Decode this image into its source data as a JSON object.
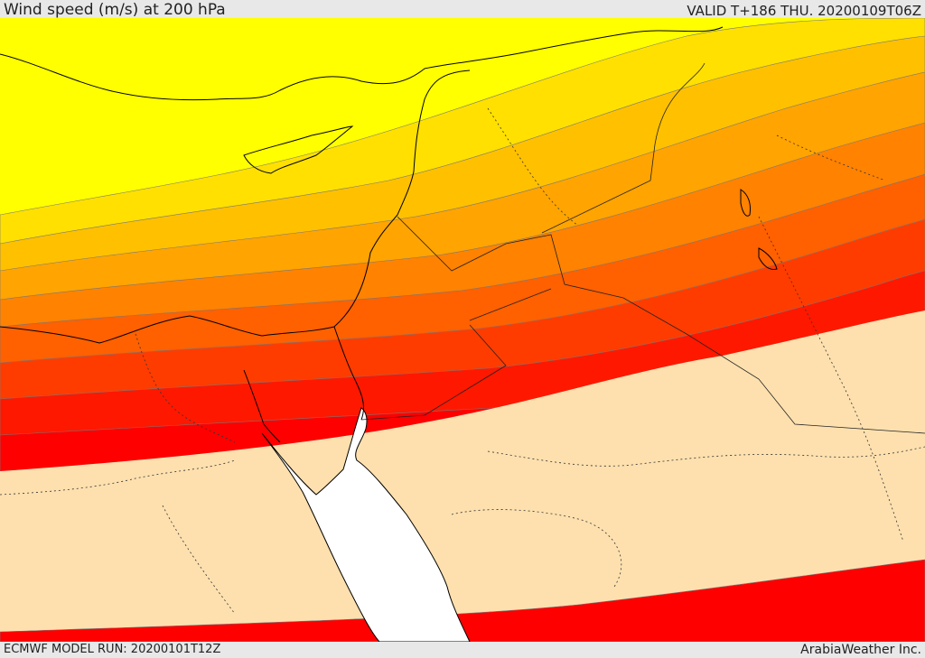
{
  "header": {
    "title": "Wind speed (m/s) at 200 hPa",
    "valid": "VALID T+186 THU. 20200109T06Z"
  },
  "footer": {
    "model_run": "ECMWF MODEL RUN: 20200101T12Z",
    "credit": "ArabiaWeather Inc."
  },
  "palette": {
    "sea_land_low": "#fde0ae",
    "band_1": "#ffff00",
    "band_2": "#ffe000",
    "band_3": "#ffc000",
    "band_4": "#ffa400",
    "band_5": "#ff8200",
    "band_6": "#ff6000",
    "band_7": "#ff3c00",
    "band_8": "#ff1800",
    "band_9": "#ff0000",
    "red_sea": "#ffffff"
  }
}
